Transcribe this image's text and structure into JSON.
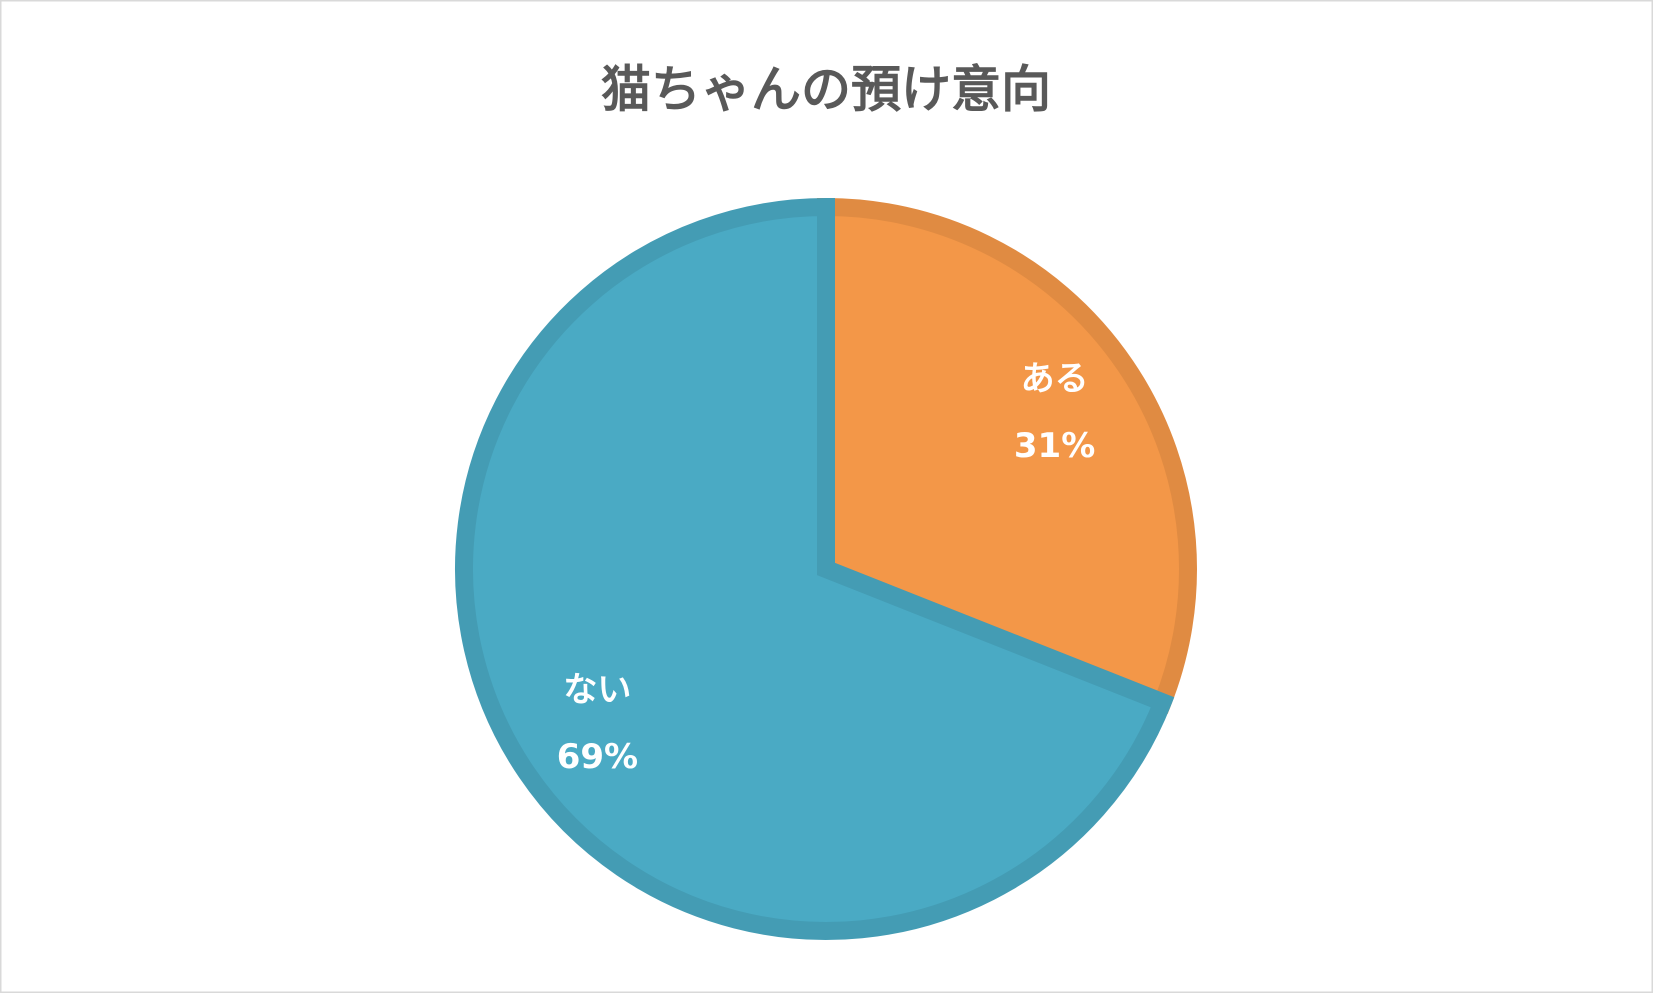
{
  "chart_data": {
    "type": "pie",
    "title": "猫ちゃんの預け意向",
    "categories": [
      "ある",
      "ない"
    ],
    "values": [
      31,
      69
    ],
    "value_labels": [
      "31%",
      "69%"
    ],
    "colors": [
      "#f39748",
      "#4aaac4"
    ]
  }
}
